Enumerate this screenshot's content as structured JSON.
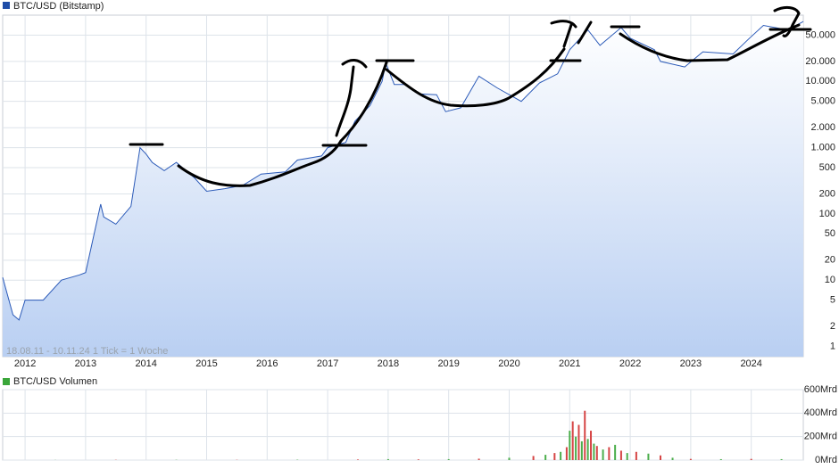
{
  "chart_data": [
    {
      "type": "line",
      "title": "BTC/USD (Bitstamp)",
      "color": "#2b5ab8",
      "legend_color": "#1f4da8",
      "note": "18.08.11 - 10.11.24   1 Tick = 1 Woche",
      "log_scale": true,
      "grid": true,
      "x": [
        2011.63,
        2011.8,
        2011.9,
        2012.0,
        2012.3,
        2012.6,
        2012.9,
        2013.0,
        2013.25,
        2013.3,
        2013.5,
        2013.75,
        2013.9,
        2014.0,
        2014.1,
        2014.3,
        2014.5,
        2014.8,
        2015.0,
        2015.3,
        2015.6,
        2015.9,
        2016.3,
        2016.5,
        2016.9,
        2017.0,
        2017.3,
        2017.45,
        2017.7,
        2017.9,
        2017.96,
        2018.1,
        2018.3,
        2018.5,
        2018.8,
        2018.95,
        2019.2,
        2019.5,
        2019.8,
        2020.2,
        2020.5,
        2020.8,
        2021.0,
        2021.3,
        2021.5,
        2021.85,
        2022.0,
        2022.4,
        2022.5,
        2022.9,
        2023.2,
        2023.7,
        2023.95,
        2024.2,
        2024.6,
        2024.86
      ],
      "values": [
        11,
        3,
        2.5,
        5,
        5,
        10,
        12,
        13,
        140,
        90,
        70,
        130,
        1000,
        800,
        600,
        450,
        600,
        350,
        220,
        240,
        270,
        400,
        430,
        650,
        750,
        1000,
        1200,
        2500,
        4300,
        10000,
        19000,
        9000,
        9000,
        6500,
        6300,
        3500,
        4000,
        12000,
        8000,
        5000,
        9500,
        13000,
        30000,
        60000,
        35000,
        65000,
        45000,
        30000,
        20000,
        16500,
        28000,
        26000,
        43000,
        70000,
        60000,
        80000
      ],
      "xlim": [
        2011.63,
        2024.86
      ],
      "xticks": [
        2012,
        2013,
        2014,
        2015,
        2016,
        2017,
        2018,
        2019,
        2020,
        2021,
        2022,
        2023,
        2024
      ],
      "ylim": [
        0.7,
        100000
      ],
      "yticks": [
        1,
        2,
        5,
        10,
        20,
        50,
        100,
        200,
        500,
        {
          "value": 1000,
          "label": "1.000"
        },
        {
          "value": 2000,
          "label": "2.000"
        },
        {
          "value": 5000,
          "label": "5.000"
        },
        {
          "value": 10000,
          "label": "10.000"
        },
        {
          "value": 20000,
          "label": "20.000"
        },
        {
          "value": 50000,
          "label": "50.000"
        }
      ]
    },
    {
      "type": "bar",
      "title": "BTC/USD Volumen",
      "legend_color": "#3aa63a",
      "colors": [
        "#4cae4c",
        "#d64545"
      ],
      "grid": true,
      "x": [
        2012.5,
        2013.5,
        2014.5,
        2015.5,
        2016.5,
        2017.5,
        2018.0,
        2018.5,
        2019.0,
        2019.5,
        2020.0,
        2020.4,
        2020.6,
        2020.75,
        2020.85,
        2020.95,
        2021.0,
        2021.05,
        2021.1,
        2021.15,
        2021.2,
        2021.25,
        2021.3,
        2021.35,
        2021.4,
        2021.45,
        2021.55,
        2021.65,
        2021.75,
        2021.85,
        2021.95,
        2022.1,
        2022.3,
        2022.5,
        2022.7,
        2023.0,
        2023.5,
        2024.0,
        2024.5
      ],
      "values": [
        1,
        2,
        2,
        2,
        3,
        5,
        8,
        6,
        8,
        12,
        20,
        35,
        45,
        60,
        70,
        110,
        250,
        330,
        200,
        300,
        160,
        420,
        180,
        250,
        140,
        120,
        90,
        110,
        130,
        80,
        60,
        70,
        55,
        40,
        20,
        10,
        8,
        10,
        8
      ],
      "xlim": [
        2011.63,
        2024.86
      ],
      "ylim": [
        0,
        600
      ],
      "yticks": [
        {
          "value": 0,
          "label": "0Mrd"
        },
        {
          "value": 200,
          "label": "200Mrd"
        },
        {
          "value": 400,
          "label": "400Mrd"
        },
        {
          "value": 600,
          "label": "600Mrd"
        }
      ]
    }
  ]
}
